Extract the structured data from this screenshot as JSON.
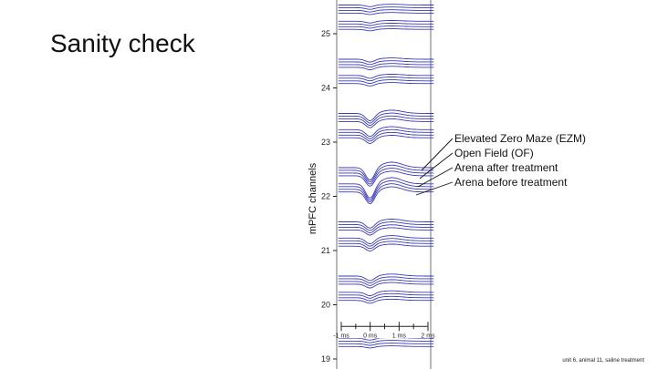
{
  "slide": {
    "title": "Sanity check",
    "footnote": "unit 6, animal 11, saline treatment"
  },
  "colors": {
    "trace": "#3a3ab8",
    "axis": "#222222",
    "frame": "#888888",
    "background": "#ffffff"
  },
  "chart_data": {
    "type": "line",
    "title": "Sanity check",
    "xlabel": "",
    "ylabel": "mPFC channels",
    "ylim": [
      18.85,
      25.55
    ],
    "y_ticks": [
      19,
      20,
      21,
      22,
      23,
      24,
      25
    ],
    "y_tick_labels": [
      "19",
      "20",
      "21",
      "22",
      "23",
      "24",
      "25"
    ],
    "x_range_ms": [
      -1.1,
      2.2
    ],
    "x_ticks_ms": [
      -1,
      -0.5,
      0,
      0.5,
      1,
      1.5,
      2
    ],
    "x_tick_labels": [
      {
        "value": -1,
        "label": "-1 ms"
      },
      {
        "value": 0,
        "label": "0 ms"
      },
      {
        "value": 1,
        "label": "1 ms"
      },
      {
        "value": 2,
        "label": "2 ms"
      }
    ],
    "x_scale_bar_channel": 19.6,
    "series_names": [
      "Elevated Zero Maze (EZM)",
      "Open Field (OF)",
      "Arena after treatment",
      "Arena before treatment"
    ],
    "series_offsets": [
      -0.07,
      -0.02,
      0.03,
      0.08
    ],
    "channels": [
      {
        "channel": 25.45,
        "amplitude": 0.03
      },
      {
        "channel": 25.15,
        "amplitude": 0.03
      },
      {
        "channel": 24.45,
        "amplitude": 0.05
      },
      {
        "channel": 24.15,
        "amplitude": 0.05
      },
      {
        "channel": 23.45,
        "amplitude": 0.13
      },
      {
        "channel": 23.15,
        "amplitude": 0.12
      },
      {
        "channel": 22.45,
        "amplitude": 0.22
      },
      {
        "channel": 22.15,
        "amplitude": 0.25
      },
      {
        "channel": 21.45,
        "amplitude": 0.11
      },
      {
        "channel": 21.15,
        "amplitude": 0.1
      },
      {
        "channel": 20.45,
        "amplitude": 0.08
      },
      {
        "channel": 20.15,
        "amplitude": 0.06
      },
      {
        "channel": 19.3,
        "amplitude": 0.03
      }
    ]
  }
}
